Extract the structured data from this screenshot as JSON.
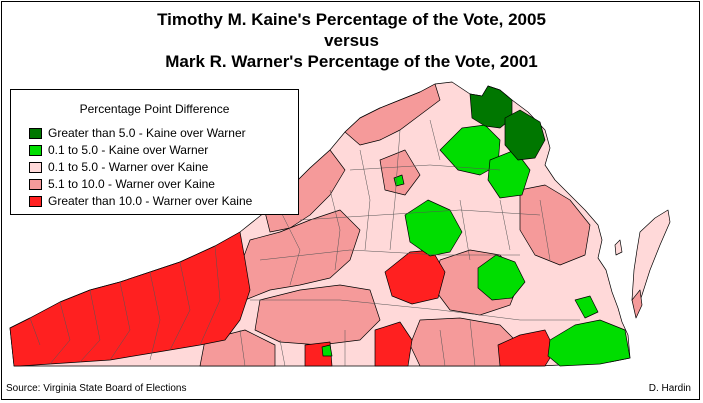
{
  "title": {
    "line1": "Timothy M. Kaine's Percentage of the Vote, 2005",
    "line2": "versus",
    "line3": "Mark R. Warner's Percentage of the Vote, 2001"
  },
  "legend": {
    "title": "Percentage Point Difference",
    "items": [
      {
        "label": "Greater than 5.0 - Kaine over Warner",
        "color": "#007700"
      },
      {
        "label": "0.1 to 5.0 - Kaine over Warner",
        "color": "#00dd00"
      },
      {
        "label": "0.1 to 5.0 - Warner over Kaine",
        "color": "#ffd9d9"
      },
      {
        "label": "5.1 to 10.0 - Warner over Kaine",
        "color": "#f59a9a"
      },
      {
        "label": "Greater than 10.0 - Warner over Kaine",
        "color": "#ff2020"
      }
    ]
  },
  "footer": {
    "source": "Source: Virginia State Board of Elections",
    "author": "D. Hardin"
  }
}
